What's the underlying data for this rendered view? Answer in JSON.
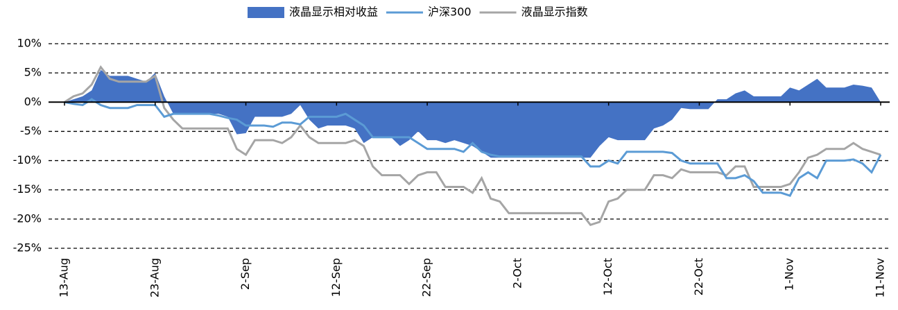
{
  "chart_data": {
    "type": "line",
    "categories": [
      "13-Aug",
      null,
      null,
      null,
      null,
      null,
      null,
      null,
      null,
      null,
      "23-Aug",
      null,
      null,
      null,
      null,
      null,
      null,
      null,
      null,
      null,
      "2-Sep",
      null,
      null,
      null,
      null,
      null,
      null,
      null,
      null,
      null,
      "12-Sep",
      null,
      null,
      null,
      null,
      null,
      null,
      null,
      null,
      null,
      "22-Sep",
      null,
      null,
      null,
      null,
      null,
      null,
      null,
      null,
      null,
      "2-Oct",
      null,
      null,
      null,
      null,
      null,
      null,
      null,
      null,
      null,
      "12-Oct",
      null,
      null,
      null,
      null,
      null,
      null,
      null,
      null,
      null,
      "22-Oct",
      null,
      null,
      null,
      null,
      null,
      null,
      null,
      null,
      null,
      "1-Nov",
      null,
      null,
      null,
      null,
      null,
      null,
      null,
      null,
      null,
      "11-Nov"
    ],
    "series": [
      {
        "name": "液晶显示相对收益",
        "type": "area",
        "color": "#4472c4",
        "values": [
          0,
          0.5,
          1,
          2,
          5.5,
          4.5,
          4.5,
          4.5,
          4,
          3.5,
          5,
          1,
          -2,
          -2,
          -2,
          -2,
          -2,
          -2,
          -2.5,
          -5.5,
          -5.3,
          -2.5,
          -2.5,
          -2.5,
          -2.5,
          -2,
          -0.5,
          -3,
          -4.5,
          -4,
          -4,
          -4,
          -4.5,
          -7,
          -6,
          -6,
          -6,
          -7.5,
          -6.5,
          -5,
          -6.5,
          -6.5,
          -7,
          -6.5,
          -7,
          -7.5,
          -8.5,
          -9.5,
          -9.5,
          -9.5,
          -9.5,
          -9.5,
          -9.5,
          -9.5,
          -9.5,
          -9.5,
          -9.5,
          -9.5,
          -9.5,
          -7.5,
          -6,
          -6.5,
          -6.5,
          -6.5,
          -6.5,
          -4.5,
          -4,
          -3,
          -1,
          -1.2,
          -1.2,
          -1.2,
          0.5,
          0.5,
          1.5,
          2,
          1,
          1,
          1,
          1,
          2.5,
          2,
          3,
          4,
          2.5,
          2.5,
          2.5,
          3,
          2.8,
          2.5,
          0
        ]
      },
      {
        "name": "沪深300",
        "type": "line",
        "color": "#5b9bd5",
        "values": [
          0,
          -0.3,
          -0.5,
          0.5,
          -0.5,
          -1,
          -1,
          -1,
          -0.5,
          -0.5,
          -0.5,
          -2.5,
          -2,
          -2,
          -2,
          -2,
          -2,
          -2.3,
          -2.7,
          -3,
          -4,
          -4,
          -4,
          -4.2,
          -3.5,
          -3.5,
          -3.8,
          -2.5,
          -2.5,
          -2.5,
          -2.5,
          -2,
          -3,
          -4,
          -6,
          -6,
          -6,
          -6,
          -6,
          -7,
          -8,
          -8,
          -8,
          -8,
          -8.5,
          -7,
          -8.5,
          -9,
          -9.3,
          -9.3,
          -9.3,
          -9.3,
          -9.3,
          -9.3,
          -9.3,
          -9.3,
          -9.3,
          -9.3,
          -11,
          -11,
          -10,
          -10.5,
          -8.5,
          -8.5,
          -8.5,
          -8.5,
          -8.5,
          -8.7,
          -10,
          -10.5,
          -10.5,
          -10.5,
          -10.5,
          -13,
          -13,
          -12.5,
          -13.5,
          -15.5,
          -15.5,
          -15.5,
          -16,
          -13,
          -12,
          -13,
          -10,
          -10,
          -10,
          -9.8,
          -10.5,
          -12,
          -9
        ]
      },
      {
        "name": "液晶显示指数",
        "type": "line",
        "color": "#a5a5a5",
        "values": [
          0,
          1,
          1.5,
          3,
          6,
          4,
          3.5,
          3.5,
          3.5,
          3.5,
          4.5,
          -1,
          -3,
          -4.5,
          -4.5,
          -4.5,
          -4.5,
          -4.5,
          -4.5,
          -8,
          -9,
          -6.5,
          -6.5,
          -6.5,
          -7,
          -6,
          -4,
          -6,
          -7,
          -7,
          -7,
          -7,
          -6.5,
          -7.5,
          -11,
          -12.5,
          -12.5,
          -12.5,
          -14,
          -12.5,
          -12,
          -12,
          -14.5,
          -14.5,
          -14.5,
          -15.5,
          -13,
          -16.5,
          -17,
          -19,
          -19,
          -19,
          -19,
          -19,
          -19,
          -19,
          -19,
          -19,
          -21,
          -20.5,
          -17,
          -16.5,
          -15,
          -15,
          -15,
          -12.5,
          -12.5,
          -13,
          -11.5,
          -12,
          -12,
          -12,
          -12,
          -12.5,
          -11,
          -11,
          -14.5,
          -14.5,
          -14.5,
          -14.5,
          -14,
          -12,
          -9.5,
          -9,
          -8,
          -8,
          -8,
          -7,
          -8,
          -8.5,
          -9
        ]
      }
    ],
    "ylim": [
      -25,
      10
    ],
    "yticks": [
      {
        "value": 10,
        "label": "10%"
      },
      {
        "value": 5,
        "label": "5%"
      },
      {
        "value": 0,
        "label": "0%"
      },
      {
        "value": -5,
        "label": "-5%"
      },
      {
        "value": -10,
        "label": "-10%"
      },
      {
        "value": -15,
        "label": "-15%"
      },
      {
        "value": -20,
        "label": "-20%"
      },
      {
        "value": -25,
        "label": "-25%"
      }
    ],
    "grid": true,
    "legend": "top"
  }
}
